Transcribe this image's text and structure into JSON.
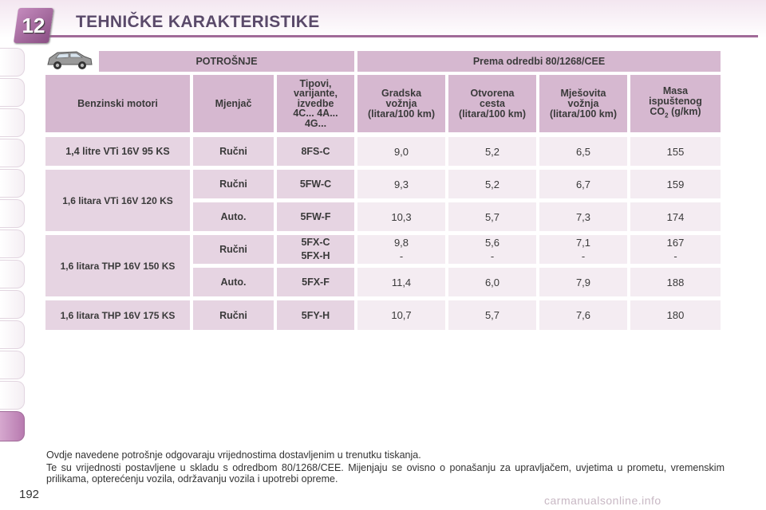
{
  "header": {
    "chapter_number": "12",
    "title": "TEHNIČKE KARAKTERISTIKE"
  },
  "table": {
    "group_headers": {
      "consumption": "POTROŠNJE",
      "directive": "Prema odredbi 80/1268/CEE"
    },
    "columns": {
      "engine": "Benzinski motori",
      "gearbox": "Mjenjač",
      "types": [
        "Tipovi,",
        "varijante,",
        "izvedbe",
        "4C... 4A...",
        "4G..."
      ],
      "urban": [
        "Gradska",
        "vožnja",
        "(litara/100 km)"
      ],
      "extra_urban": [
        "Otvorena",
        "cesta",
        "(litara/100 km)"
      ],
      "combined": [
        "Mješovita",
        "vožnja",
        "(litara/100 km)"
      ],
      "co2": [
        "Masa",
        "ispuštenog",
        "CO",
        "2",
        "(g/km)"
      ]
    },
    "engines": [
      "1,4 litre VTi 16V 95 KS",
      "1,6 litara VTi 16V 120 KS",
      "1,6 litara THP 16V 150 KS",
      "1,6 litara THP 16V 175 KS"
    ],
    "rows": [
      {
        "gearbox": "Ručni",
        "types": [
          "8FS-C"
        ],
        "urban": [
          "9,0"
        ],
        "extra_urban": [
          "5,2"
        ],
        "combined": [
          "6,5"
        ],
        "co2": [
          "155"
        ]
      },
      {
        "gearbox": "Ručni",
        "types": [
          "5FW-C"
        ],
        "urban": [
          "9,3"
        ],
        "extra_urban": [
          "5,2"
        ],
        "combined": [
          "6,7"
        ],
        "co2": [
          "159"
        ]
      },
      {
        "gearbox": "Auto.",
        "types": [
          "5FW-F"
        ],
        "urban": [
          "10,3"
        ],
        "extra_urban": [
          "5,7"
        ],
        "combined": [
          "7,3"
        ],
        "co2": [
          "174"
        ]
      },
      {
        "gearbox": "Ručni",
        "types": [
          "5FX-C",
          "5FX-H"
        ],
        "urban": [
          "9,8",
          "-"
        ],
        "extra_urban": [
          "5,6",
          "-"
        ],
        "combined": [
          "7,1",
          "-"
        ],
        "co2": [
          "167",
          "-"
        ]
      },
      {
        "gearbox": "Auto.",
        "types": [
          "5FX-F"
        ],
        "urban": [
          "11,4"
        ],
        "extra_urban": [
          "6,0"
        ],
        "combined": [
          "7,9"
        ],
        "co2": [
          "188"
        ]
      },
      {
        "gearbox": "Ručni",
        "types": [
          "5FY-H"
        ],
        "urban": [
          "10,7"
        ],
        "extra_urban": [
          "5,7"
        ],
        "combined": [
          "7,6"
        ],
        "co2": [
          "180"
        ]
      }
    ]
  },
  "notes": [
    "Ovdje navedene potrošnje odgovaraju vrijednostima dostavljenim u trenutku tiskanja.",
    "Te su vrijednosti postavljene u skladu s odredbom 80/1268/CEE. Mijenjaju se ovisno o ponašanju za upravljačem, uvjetima u prometu, vremenskim prilikama, opterećenju vozila, održavanju vozila i upotrebi opreme."
  ],
  "page_number": "192",
  "watermark": "carmanualsonline.info",
  "icons": {
    "car": "car-icon",
    "chapter": "chapter-badge"
  },
  "colors": {
    "accent": "#a06a98",
    "header_cell": "#d6b8d0",
    "label_cell": "#e6d4e2",
    "value_cell": "#f4ecf2"
  }
}
